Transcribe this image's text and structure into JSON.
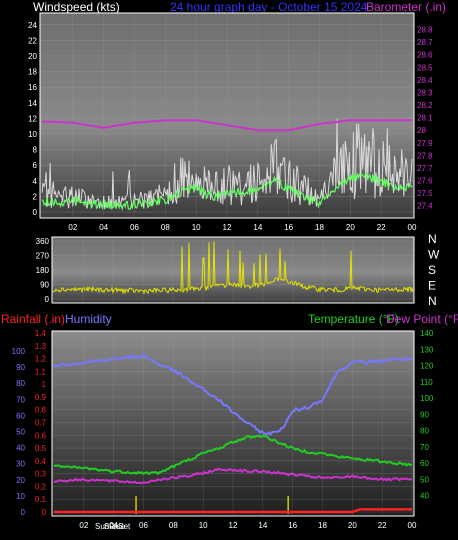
{
  "header": {
    "windspeed_label": "Windspeed (kts)",
    "title": "24 hour graph day - October 15 2024",
    "barometer_label": "Barometer (.in)"
  },
  "panel2": {
    "compass": [
      "N",
      "W",
      "S",
      "E",
      "N"
    ]
  },
  "panel3_header": {
    "rainfall_label": "Rainfall (.in)",
    "humidity_label": "Humidity",
    "temperature_label": "Temperature (°F)",
    "dewpoint_label": "Dew Point (°F)",
    "sunrise_label": "SunRise",
    "sunset_label": "SunSet"
  },
  "colors": {
    "wind": "#d9d9d9",
    "wind_avg": "#66ff66",
    "barometer": "#cc33cc",
    "direction": "#e5e500",
    "humidity": "#7777ff",
    "temperature": "#22cc22",
    "dewpoint": "#cc33cc",
    "rainfall": "#ff2222",
    "sun_marker": "#cccc00",
    "frame": "#ffffff"
  },
  "chart_data": [
    {
      "type": "line",
      "name": "windspeed-barometer",
      "x_ticks": [
        "02",
        "04",
        "06",
        "08",
        "10",
        "12",
        "14",
        "16",
        "18",
        "20",
        "22",
        "00"
      ],
      "ylim_left": [
        0,
        25
      ],
      "y_ticks_left": [
        "0",
        "2",
        "4",
        "6",
        "8",
        "10",
        "12",
        "14",
        "16",
        "18",
        "20",
        "22",
        "24"
      ],
      "ylim_right": [
        27.35,
        28.9
      ],
      "y_ticks_right": [
        "27.4",
        "27.5",
        "27.6",
        "27.7",
        "27.8",
        "27.9",
        "28",
        "28.1",
        "28.2",
        "28.3",
        "28.4",
        "28.5",
        "28.6",
        "28.7",
        "28.8"
      ],
      "series": [
        {
          "name": "Windspeed",
          "axis": "left",
          "x": [
            0,
            1,
            2,
            3,
            4,
            5,
            6,
            7,
            8,
            9,
            10,
            11,
            12,
            13,
            14,
            15,
            16,
            17,
            18,
            19,
            20,
            21,
            22,
            23,
            24
          ],
          "values": [
            1.5,
            1.2,
            1.5,
            1.0,
            1.0,
            0.8,
            1.0,
            1.2,
            1.5,
            2.5,
            3.0,
            2.0,
            2.5,
            2.5,
            3.0,
            4.0,
            3.0,
            2.0,
            1.0,
            3.0,
            4.5,
            4.5,
            4.0,
            3.0,
            3.5
          ]
        },
        {
          "name": "Barometer",
          "axis": "right",
          "x": [
            0,
            2,
            4,
            6,
            8,
            10,
            12,
            14,
            16,
            18,
            20,
            22,
            24
          ],
          "values": [
            28.07,
            28.06,
            28.02,
            28.06,
            28.08,
            28.08,
            28.04,
            28.0,
            28.0,
            28.05,
            28.08,
            28.08,
            28.08
          ]
        }
      ]
    },
    {
      "type": "line",
      "name": "wind-direction",
      "ylim": [
        0,
        360
      ],
      "y_ticks": [
        "0",
        "90",
        "180",
        "270",
        "360"
      ],
      "series": [
        {
          "name": "Direction",
          "x": [
            0,
            2,
            4,
            6,
            8,
            9,
            10,
            11,
            12,
            13,
            14,
            15,
            16,
            17,
            18,
            19,
            20,
            21,
            22,
            23,
            24
          ],
          "values": [
            60,
            60,
            55,
            50,
            55,
            60,
            70,
            80,
            90,
            80,
            85,
            120,
            100,
            70,
            60,
            55,
            70,
            60,
            55,
            60,
            60
          ]
        }
      ]
    },
    {
      "type": "line",
      "name": "rain-humidity-temperature",
      "ylim_rain": [
        0,
        1.4
      ],
      "y_ticks_rain": [
        "0",
        "0.1",
        "0.2",
        "0.3",
        "0.4",
        "0.5",
        "0.6",
        "0.7",
        "0.8",
        "0.9",
        "1",
        "1.1",
        "1.2",
        "1.3",
        "1.4"
      ],
      "ylim_humidity": [
        0,
        100
      ],
      "y_ticks_humidity": [
        "0",
        "10",
        "20",
        "30",
        "40",
        "50",
        "60",
        "70",
        "80",
        "90",
        "100"
      ],
      "ylim_temp": [
        30,
        140
      ],
      "y_ticks_temp": [
        "40",
        "50",
        "60",
        "70",
        "80",
        "90",
        "100",
        "110",
        "120",
        "130",
        "140"
      ],
      "sunrise_hour": 5.5,
      "sunset_hour": 15.7,
      "series": [
        {
          "name": "Humidity",
          "x": [
            0,
            2,
            4,
            6,
            7,
            8,
            9,
            10,
            11,
            12,
            13,
            14,
            14.8,
            15.5,
            16,
            17,
            18,
            19,
            20,
            21,
            22,
            23,
            24
          ],
          "values": [
            91,
            93,
            95,
            97,
            92,
            88,
            82,
            76,
            70,
            62,
            55,
            49,
            49,
            54,
            63,
            65,
            70,
            87,
            93,
            93,
            94,
            95,
            95
          ]
        },
        {
          "name": "Temperature",
          "x": [
            0,
            2,
            4,
            6,
            7,
            8,
            9,
            10,
            11,
            12,
            13,
            14,
            15,
            16,
            17,
            18,
            19,
            20,
            21,
            22,
            23,
            24
          ],
          "values": [
            58,
            57,
            55,
            54,
            54,
            58,
            62,
            66,
            69,
            73,
            76,
            77,
            73,
            69,
            67,
            66,
            64,
            63,
            62,
            61,
            60,
            59
          ]
        },
        {
          "name": "Dew Point",
          "x": [
            0,
            2,
            4,
            6,
            7,
            8,
            9,
            10,
            11,
            12,
            13,
            14,
            15,
            16,
            17,
            18,
            19,
            20,
            21,
            22,
            23,
            24
          ],
          "values": [
            49,
            50,
            49,
            48,
            50,
            51,
            52,
            54,
            56,
            56,
            55,
            55,
            54,
            53,
            52,
            51,
            51,
            52,
            51,
            50,
            50,
            50
          ]
        },
        {
          "name": "Rainfall",
          "x": [
            0,
            20,
            20.5,
            24
          ],
          "values": [
            0,
            0,
            0.02,
            0.02
          ]
        }
      ]
    }
  ]
}
